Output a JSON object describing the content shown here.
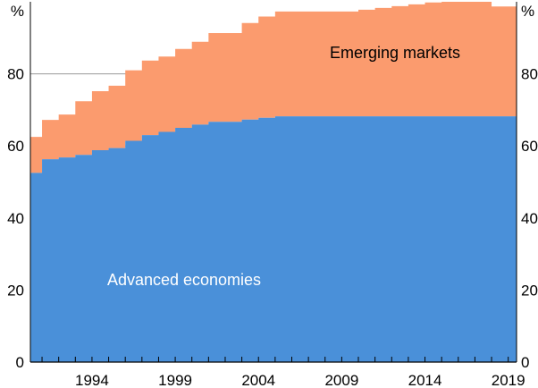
{
  "chart_data": {
    "type": "area",
    "stacked": true,
    "y_unit": "%",
    "ylim": [
      0,
      100
    ],
    "y_ticks": [
      0,
      20,
      40,
      60,
      80
    ],
    "x_range": [
      1990.3,
      2019.5
    ],
    "x_ticks": [
      1994,
      1999,
      2004,
      2009,
      2014,
      2019
    ],
    "grid": true,
    "colors": {
      "advanced": "#4a90d9",
      "emerging": "#fb9b6e",
      "grid": "#999999",
      "axis": "#000000"
    },
    "series": [
      {
        "name": "Advanced economies",
        "x": [
          1990.3,
          1991,
          1992,
          1993,
          1994,
          1995,
          1996,
          1997,
          1998,
          1999,
          2000,
          2001,
          2002,
          2003,
          2004,
          2005,
          2006,
          2007,
          2008,
          2009,
          2010,
          2011,
          2012,
          2013,
          2014,
          2015,
          2016,
          2017,
          2018,
          2019
        ],
        "values": [
          52.5,
          56.3,
          56.8,
          57.5,
          58.8,
          59.4,
          61.4,
          63.0,
          63.9,
          65.0,
          65.9,
          66.7,
          66.7,
          67.3,
          67.8,
          68.2,
          68.2,
          68.2,
          68.2,
          68.2,
          68.2,
          68.2,
          68.2,
          68.2,
          68.2,
          68.2,
          68.2,
          68.2,
          68.2,
          68.2
        ]
      },
      {
        "name": "Emerging markets",
        "x": [
          1990.3,
          1991,
          1992,
          1993,
          1994,
          1995,
          1996,
          1997,
          1998,
          1999,
          2000,
          2001,
          2002,
          2003,
          2004,
          2005,
          2006,
          2007,
          2008,
          2009,
          2010,
          2011,
          2012,
          2013,
          2014,
          2015,
          2016,
          2017,
          2018,
          2019
        ],
        "values": [
          10.0,
          10.9,
          11.9,
          14.9,
          16.4,
          17.3,
          19.6,
          20.7,
          20.9,
          21.9,
          23.0,
          24.6,
          24.6,
          26.8,
          28.1,
          29.1,
          29.1,
          29.1,
          29.1,
          29.1,
          29.6,
          30.1,
          30.6,
          31.1,
          31.6,
          31.8,
          31.8,
          31.8,
          30.5,
          30.5
        ]
      }
    ],
    "labels": {
      "advanced": "Advanced economies",
      "emerging": "Emerging markets"
    }
  }
}
